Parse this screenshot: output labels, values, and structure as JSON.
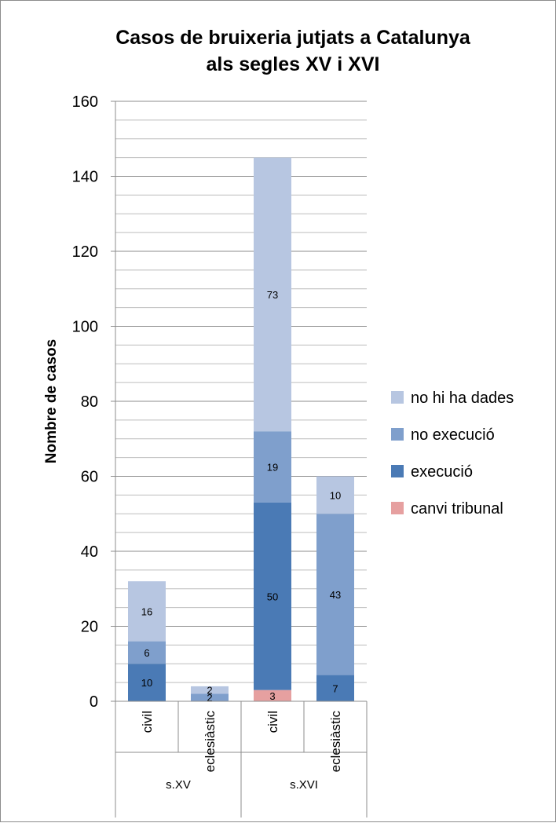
{
  "chart_data": {
    "type": "bar",
    "stacked": true,
    "title_line1": "Casos de bruixeria jutjats a Catalunya",
    "title_line2": "als segles XV i XVI",
    "xlabel": "",
    "ylabel": "Nombre de casos",
    "ylim": [
      0,
      160
    ],
    "yticks": [
      0,
      20,
      40,
      60,
      80,
      100,
      120,
      140,
      160
    ],
    "categories": [
      "civil",
      "eclesiàstic",
      "civil",
      "eclesiàstic"
    ],
    "groups": [
      {
        "label": "s.XV",
        "span": [
          0,
          1
        ]
      },
      {
        "label": "s.XVI",
        "span": [
          2,
          3
        ]
      }
    ],
    "series": [
      {
        "name": "canvi tribunal",
        "color": "#e6a0a0",
        "values": [
          0,
          0,
          3,
          0
        ]
      },
      {
        "name": "execució",
        "color": "#4a7ab5",
        "values": [
          10,
          0,
          50,
          7
        ]
      },
      {
        "name": "no execució",
        "color": "#7f9fcc",
        "values": [
          6,
          2,
          19,
          43
        ]
      },
      {
        "name": "no hi ha dades",
        "color": "#b7c6e1",
        "values": [
          16,
          2,
          73,
          10
        ]
      }
    ],
    "legend_position": "right",
    "grid": true
  }
}
